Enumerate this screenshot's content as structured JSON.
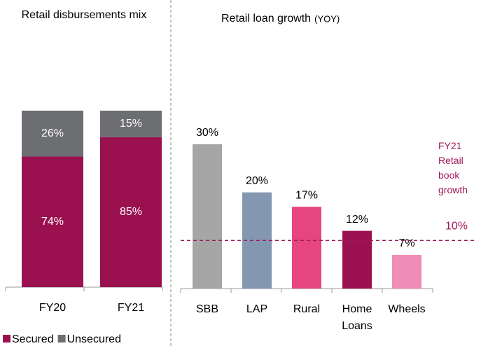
{
  "chart_data": [
    {
      "type": "stacked_bar",
      "title": "Retail disbursements mix",
      "categories": [
        "FY20",
        "FY21"
      ],
      "series": [
        {
          "name": "Secured",
          "color": "#9b1150",
          "values": [
            74,
            85
          ],
          "value_labels": [
            "74%",
            "85%"
          ]
        },
        {
          "name": "Unsecured",
          "color": "#6d6e71",
          "values": [
            26,
            15
          ],
          "value_labels": [
            "26%",
            "15%"
          ]
        }
      ],
      "ylim": [
        0,
        100
      ],
      "legend": "bottom"
    },
    {
      "type": "bar",
      "title": "Retail loan growth",
      "subtitle": "(YOY)",
      "categories": [
        "SBB",
        "LAP",
        "Rural",
        "Home Loans",
        "Wheels"
      ],
      "values": [
        30,
        20,
        17,
        12,
        7
      ],
      "value_labels": [
        "30%",
        "20%",
        "17%",
        "12%",
        "7%"
      ],
      "colors": [
        "#a6a6a6",
        "#8497b0",
        "#e6457f",
        "#9b1150",
        "#f08cb8"
      ],
      "ylim": [
        0,
        60
      ],
      "reference_line": {
        "value": 10,
        "label": "10%",
        "color": "#a0175a"
      },
      "annotation": "FY21 Retail book growth"
    }
  ]
}
